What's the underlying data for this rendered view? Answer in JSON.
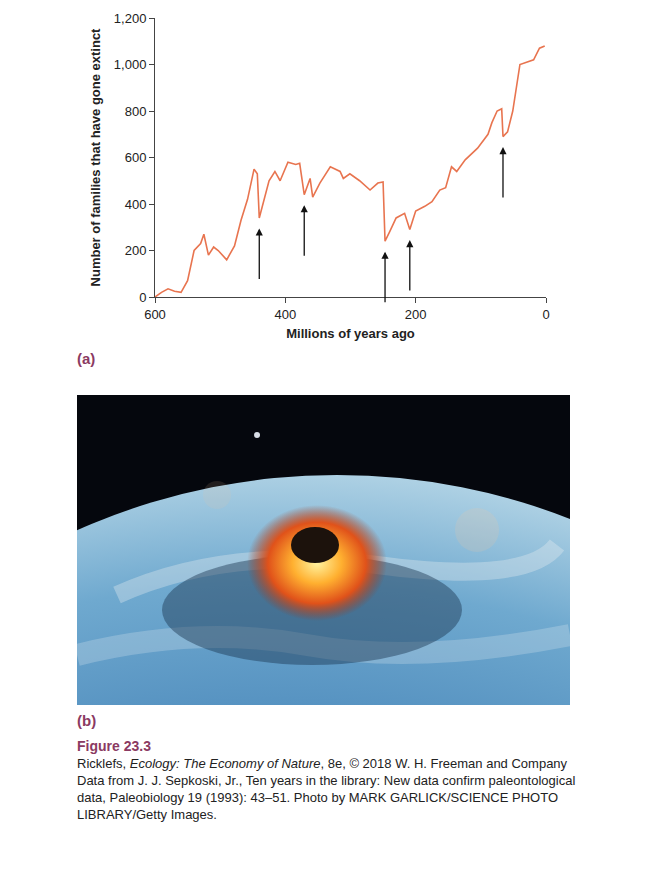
{
  "chart_data": {
    "type": "line",
    "xlabel": "Millions of years ago",
    "ylabel": "Number of families that have gone extinct",
    "x": [
      600,
      590,
      580,
      570,
      560,
      550,
      540,
      530,
      525,
      518,
      510,
      503,
      490,
      478,
      468,
      458,
      448,
      443,
      440,
      432,
      425,
      416,
      408,
      396,
      384,
      378,
      371,
      362,
      358,
      347,
      331,
      316,
      311,
      301,
      286,
      270,
      258,
      250,
      247,
      240,
      230,
      217,
      209,
      200,
      186,
      175,
      163,
      154,
      145,
      137,
      124,
      105,
      89,
      83,
      75,
      68,
      66,
      59,
      51,
      40,
      28,
      19,
      10,
      2
    ],
    "values": [
      0,
      20,
      35,
      25,
      20,
      70,
      200,
      230,
      270,
      180,
      215,
      200,
      160,
      220,
      330,
      420,
      550,
      530,
      340,
      430,
      500,
      540,
      500,
      580,
      570,
      575,
      440,
      510,
      430,
      490,
      560,
      540,
      510,
      530,
      500,
      460,
      490,
      495,
      240,
      280,
      340,
      360,
      290,
      370,
      390,
      410,
      460,
      470,
      560,
      540,
      590,
      640,
      700,
      750,
      800,
      810,
      690,
      710,
      800,
      1000,
      1010,
      1020,
      1070,
      1080
    ],
    "color": "#e8744f",
    "xlim": [
      600,
      0
    ],
    "xticks": [
      600,
      400,
      200,
      0
    ],
    "ylim": [
      0,
      1200
    ],
    "yticks": [
      0,
      200,
      400,
      600,
      800,
      {
        "value": 1000,
        "label": "1,000"
      },
      {
        "value": 1200,
        "label": "1,200"
      }
    ],
    "grid": false,
    "event_arrows": [
      440,
      371,
      247,
      209,
      66
    ]
  },
  "panel_labels": [
    "(a)",
    "(b)"
  ],
  "caption": {
    "figure_label": "Figure 23.3",
    "source": [
      {
        "text": "Ricklefs, "
      },
      {
        "text": "Ecology: The Economy of Nature",
        "italic": true
      },
      {
        "text": ", 8e, © 2018 W. H. Freeman and Company"
      }
    ],
    "credit": "Data from J. J. Sepkoski, Jr., Ten years in the library: New data confirm paleontological data, Paleobiology 19 (1993): 43–51. Photo by MARK GARLICK/SCIENCE PHOTO LIBRARY/Getty Images."
  }
}
